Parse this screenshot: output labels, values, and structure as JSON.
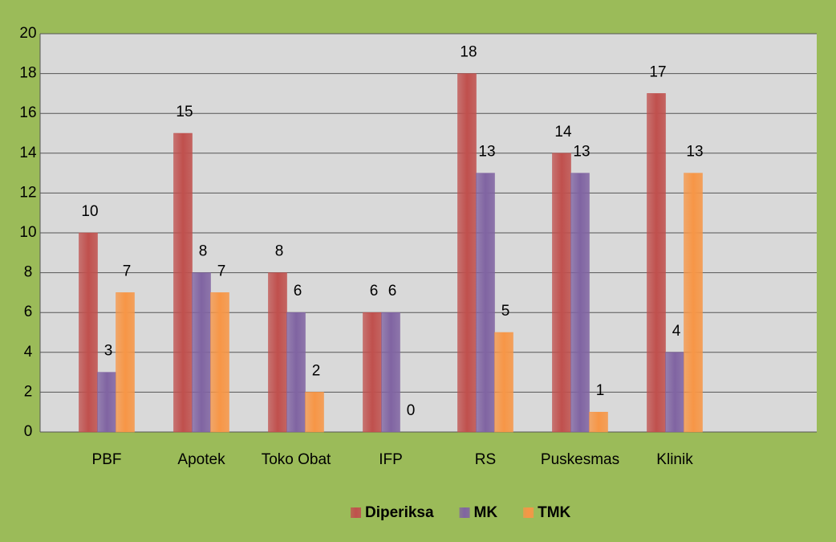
{
  "chart_data": {
    "type": "bar",
    "categories": [
      "PBF",
      "Apotek",
      "Toko Obat",
      "IFP",
      "RS",
      "Puskesmas",
      "Klinik"
    ],
    "series": [
      {
        "name": "Diperiksa",
        "color": "#c0504d",
        "values": [
          10,
          15,
          8,
          6,
          18,
          14,
          17
        ]
      },
      {
        "name": "MK",
        "color": "#8064a2",
        "values": [
          3,
          8,
          6,
          6,
          13,
          13,
          4
        ]
      },
      {
        "name": "TMK",
        "color": "#f79646",
        "values": [
          7,
          7,
          2,
          0,
          5,
          1,
          13
        ]
      }
    ],
    "ylim": [
      0,
      20
    ],
    "yticks": [
      0,
      2,
      4,
      6,
      8,
      10,
      12,
      14,
      16,
      18,
      20
    ],
    "grid": true,
    "legend": "bottom"
  }
}
